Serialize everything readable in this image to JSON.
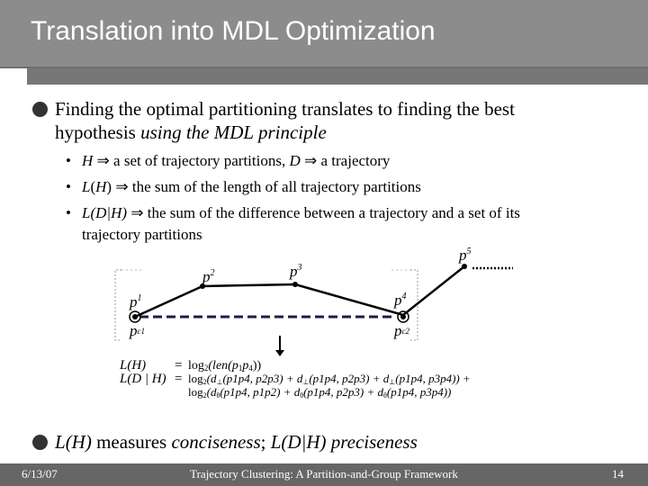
{
  "title": "Translation into MDL Optimization",
  "bullet1": {
    "line1": "Finding the optimal partitioning translates to finding the best",
    "line2_plain": "hypothesis ",
    "line2_italic": "using the MDL principle"
  },
  "sub1": {
    "mark": "•",
    "H": "H",
    "arrow": "⇒",
    "t1": " a set of trajectory partitions, ",
    "D": "D",
    "t2": " a trajectory"
  },
  "sub2": {
    "mark": "•",
    "L": "L",
    "open": "(",
    "H": "H",
    "close": ")",
    "t1": " the sum of the length of all trajectory partitions"
  },
  "sub3": {
    "mark": "•",
    "L": "L",
    "expr": "(D|H)",
    "t1": " the sum of the difference between a trajectory and a set of its",
    "t2": "trajectory partitions"
  },
  "diagram": {
    "p1": "p",
    "p1s": "1",
    "p2": "p",
    "p2s": "2",
    "p3": "p",
    "p3s": "3",
    "p4": "p",
    "p4s": "4",
    "p5": "p",
    "p5s": "5",
    "pc1": "p",
    "pc1s": "c1",
    "pc2": "p",
    "pc2s": "c2",
    "lh": "L(H)",
    "ldh": "L(D | H)",
    "eq": "=",
    "f1": "log",
    "f1sub": "2",
    "f1b": "(len(p",
    "f1c": "1",
    "f1d": "p",
    "f1e": "4",
    "f1f": "))",
    "f2": "log",
    "f2sub": "2",
    "f2b": "(d",
    "f2c": "⊥",
    "f2d": "(p1p4, p2p3) + d",
    "f2e": "⊥",
    "f2f": "(p1p4, p2p3) + d",
    "f2g": "⊥",
    "f2h": "(p1p4, p3p4))",
    "plus": "+",
    "f3": "log",
    "f3sub": "2",
    "f3b": "(d",
    "f3c": "θ",
    "f3d": "(p1p4, p1p2) + d",
    "f3e": "θ",
    "f3f": "(p1p4, p2p3) + d",
    "f3g": "θ",
    "f3h": "(p1p4, p3p4))"
  },
  "bullet2": {
    "L1": "L",
    "H1": "(H)",
    "t1": " measures ",
    "c": "conciseness",
    "semi": "; ",
    "L2": "L",
    "DH": "(D|H)",
    "p": "preciseness"
  },
  "footer": {
    "date": "6/13/07",
    "title": "Trajectory Clustering: A Partition-and-Group Framework",
    "page": "14"
  }
}
